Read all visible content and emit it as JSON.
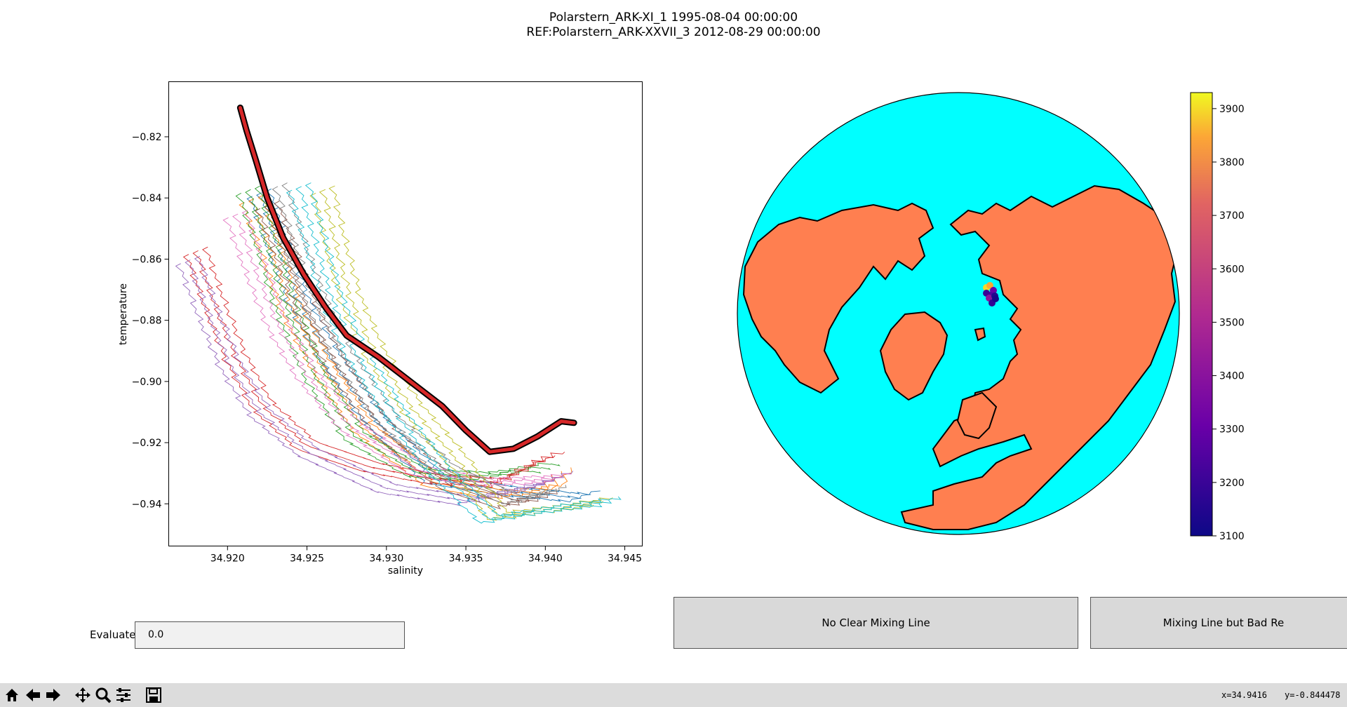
{
  "window": {
    "title_line1": "Polarstern_ARK-XI_1 1995-08-04 00:00:00",
    "title_line2": "REF:Polarstern_ARK-XXVII_3 2012-08-29 00:00:00"
  },
  "chart_data": [
    {
      "type": "line",
      "title": "",
      "xlabel": "salinity",
      "ylabel": "temperature",
      "xlim": [
        34.9163,
        34.9461
      ],
      "ylim": [
        -0.9538,
        -0.802
      ],
      "xticks": [
        34.92,
        34.925,
        34.93,
        34.935,
        34.94,
        34.945
      ],
      "xtick_labels": [
        "34.920",
        "34.925",
        "34.930",
        "34.935",
        "34.940",
        "34.945"
      ],
      "yticks": [
        -0.82,
        -0.84,
        -0.86,
        -0.88,
        -0.9,
        -0.92,
        -0.94
      ],
      "ytick_labels": [
        "−0.82",
        "−0.84",
        "−0.86",
        "−0.88",
        "−0.90",
        "−0.92",
        "−0.94"
      ],
      "grid": false,
      "reference_profile": {
        "name": "REF:Polarstern_ARK-XXVII_3",
        "color": "#d62728",
        "outline": "#000000",
        "points": [
          [
            34.9208,
            -0.8105
          ],
          [
            34.9212,
            -0.818
          ],
          [
            34.9218,
            -0.828
          ],
          [
            34.9225,
            -0.84
          ],
          [
            34.9235,
            -0.853
          ],
          [
            34.9248,
            -0.865
          ],
          [
            34.9262,
            -0.876
          ],
          [
            34.9275,
            -0.885
          ],
          [
            34.9295,
            -0.892
          ],
          [
            34.9315,
            -0.9
          ],
          [
            34.9335,
            -0.908
          ],
          [
            34.935,
            -0.916
          ],
          [
            34.9365,
            -0.923
          ],
          [
            34.938,
            -0.922
          ],
          [
            34.9395,
            -0.918
          ],
          [
            34.941,
            -0.913
          ],
          [
            34.9418,
            -0.9135
          ]
        ]
      },
      "series": [
        {
          "color": "#1f77b4",
          "points": [
            [
              34.922,
              -0.838
            ],
            [
              34.9232,
              -0.856
            ],
            [
              34.9245,
              -0.874
            ],
            [
              34.9262,
              -0.89
            ],
            [
              34.929,
              -0.911
            ],
            [
              34.933,
              -0.932
            ],
            [
              34.938,
              -0.936
            ],
            [
              34.942,
              -0.938
            ],
            [
              34.943,
              -0.936
            ]
          ]
        },
        {
          "color": "#ff7f0e",
          "points": [
            [
              34.9215,
              -0.84
            ],
            [
              34.9228,
              -0.858
            ],
            [
              34.924,
              -0.876
            ],
            [
              34.9258,
              -0.894
            ],
            [
              34.9285,
              -0.915
            ],
            [
              34.933,
              -0.933
            ],
            [
              34.937,
              -0.937
            ],
            [
              34.9405,
              -0.935
            ],
            [
              34.9412,
              -0.928
            ]
          ]
        },
        {
          "color": "#2ca02c",
          "points": [
            [
              34.9213,
              -0.837
            ],
            [
              34.9225,
              -0.856
            ],
            [
              34.9237,
              -0.876
            ],
            [
              34.9255,
              -0.898
            ],
            [
              34.928,
              -0.918
            ],
            [
              34.932,
              -0.93
            ],
            [
              34.936,
              -0.931
            ],
            [
              34.9395,
              -0.928
            ],
            [
              34.9408,
              -0.929
            ]
          ]
        },
        {
          "color": "#d62728",
          "points": [
            [
              34.918,
              -0.857
            ],
            [
              34.9192,
              -0.875
            ],
            [
              34.9205,
              -0.892
            ],
            [
              34.9222,
              -0.908
            ],
            [
              34.925,
              -0.921
            ],
            [
              34.929,
              -0.928
            ],
            [
              34.933,
              -0.932
            ],
            [
              34.937,
              -0.933
            ],
            [
              34.94,
              -0.925
            ],
            [
              34.941,
              -0.924
            ]
          ]
        },
        {
          "color": "#9467bd",
          "points": [
            [
              34.9175,
              -0.86
            ],
            [
              34.9188,
              -0.878
            ],
            [
              34.9202,
              -0.895
            ],
            [
              34.922,
              -0.91
            ],
            [
              34.925,
              -0.923
            ],
            [
              34.93,
              -0.935
            ],
            [
              34.935,
              -0.939
            ],
            [
              34.9395,
              -0.934
            ],
            [
              34.9415,
              -0.93
            ]
          ]
        },
        {
          "color": "#8c564b",
          "points": [
            [
              34.9225,
              -0.842
            ],
            [
              34.9238,
              -0.86
            ],
            [
              34.9252,
              -0.879
            ],
            [
              34.927,
              -0.896
            ],
            [
              34.93,
              -0.917
            ],
            [
              34.934,
              -0.934
            ],
            [
              34.9375,
              -0.94
            ],
            [
              34.9405,
              -0.937
            ]
          ]
        },
        {
          "color": "#e377c2",
          "points": [
            [
              34.9205,
              -0.845
            ],
            [
              34.9218,
              -0.864
            ],
            [
              34.9232,
              -0.882
            ],
            [
              34.925,
              -0.898
            ],
            [
              34.9278,
              -0.915
            ],
            [
              34.932,
              -0.929
            ],
            [
              34.936,
              -0.933
            ],
            [
              34.94,
              -0.932
            ],
            [
              34.9412,
              -0.931
            ]
          ]
        },
        {
          "color": "#7f7f7f",
          "points": [
            [
              34.923,
              -0.836
            ],
            [
              34.9242,
              -0.855
            ],
            [
              34.9256,
              -0.874
            ],
            [
              34.9273,
              -0.892
            ],
            [
              34.93,
              -0.912
            ],
            [
              34.9338,
              -0.929
            ],
            [
              34.938,
              -0.939
            ],
            [
              34.9412,
              -0.935
            ]
          ]
        },
        {
          "color": "#bcbd22",
          "points": [
            [
              34.926,
              -0.837
            ],
            [
              34.9268,
              -0.855
            ],
            [
              34.9278,
              -0.874
            ],
            [
              34.9292,
              -0.89
            ],
            [
              34.9315,
              -0.908
            ],
            [
              34.9345,
              -0.926
            ],
            [
              34.937,
              -0.944
            ],
            [
              34.94,
              -0.942
            ],
            [
              34.944,
              -0.939
            ]
          ]
        },
        {
          "color": "#17becf",
          "points": [
            [
              34.9245,
              -0.836
            ],
            [
              34.9255,
              -0.854
            ],
            [
              34.9265,
              -0.872
            ],
            [
              34.928,
              -0.89
            ],
            [
              34.9305,
              -0.91
            ],
            [
              34.9335,
              -0.93
            ],
            [
              34.9365,
              -0.945
            ],
            [
              34.94,
              -0.942
            ],
            [
              34.9445,
              -0.939
            ]
          ]
        }
      ]
    },
    {
      "type": "scatter",
      "title": "",
      "projection": "orthographic north pole",
      "ocean_color": "#00ffff",
      "land_color": "#ff7f50",
      "colormap": "plasma",
      "colorbar": {
        "vmin": 3100,
        "vmax": 3930,
        "ticks": [
          3100,
          3200,
          3300,
          3400,
          3500,
          3600,
          3700,
          3800,
          3900
        ],
        "tick_labels": [
          "3100",
          "3200",
          "3300",
          "3400",
          "3500",
          "3600",
          "3700",
          "3800",
          "3900"
        ]
      },
      "points": [
        {
          "value": 3900
        },
        {
          "value": 3850
        },
        {
          "value": 3300
        },
        {
          "value": 3250
        },
        {
          "value": 3200
        },
        {
          "value": 3400
        },
        {
          "value": 3150
        },
        {
          "value": 3180
        },
        {
          "value": 3120
        }
      ]
    }
  ],
  "controls": {
    "evaluate_label": "Evaluate",
    "evaluate_value": "0.0",
    "button_no_clear": "No Clear Mixing Line",
    "button_bad_ref": "Mixing Line but Bad Re"
  },
  "status": {
    "x_readout": "x=34.9416",
    "y_readout": "y=-0.844478"
  },
  "toolbar": {
    "icons": [
      "home-icon",
      "back-icon",
      "forward-icon",
      "pan-icon",
      "zoom-icon",
      "configure-icon",
      "save-icon"
    ]
  }
}
